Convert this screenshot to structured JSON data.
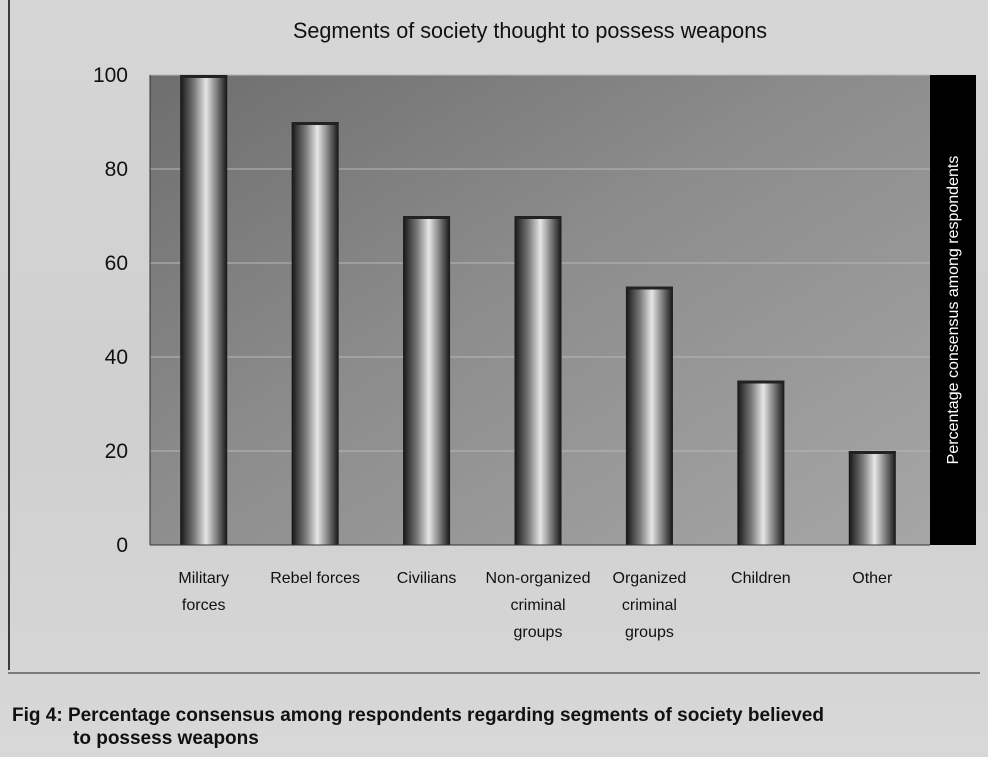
{
  "chart_data": {
    "type": "bar",
    "title": "Segments of society thought to possess weapons",
    "ylabel": "Percentage consensus among respondents",
    "xlabel": "",
    "ylim": [
      0,
      100
    ],
    "yticks": [
      "0",
      "20",
      "40",
      "60",
      "80",
      "100"
    ],
    "ytick_values": [
      0,
      20,
      40,
      60,
      80,
      100
    ],
    "grid": true,
    "categories": [
      [
        "Military",
        "forces"
      ],
      [
        "Rebel forces"
      ],
      [
        "Civilians"
      ],
      [
        "Non-organized",
        "criminal",
        "groups"
      ],
      [
        "Organized",
        "criminal",
        "groups"
      ],
      [
        "Children"
      ],
      [
        "Other"
      ]
    ],
    "values": [
      100,
      90,
      70,
      70,
      55,
      35,
      20
    ]
  },
  "caption": {
    "line1": "Fig 4: Percentage consensus among respondents regarding segments of society believed",
    "line2": "to possess weapons"
  },
  "colors": {
    "plot_background": "#8a8a8a",
    "ylabel_band": "#000000",
    "bar_dark": "#1a1a1a",
    "bar_light": "#e8e8e8"
  }
}
